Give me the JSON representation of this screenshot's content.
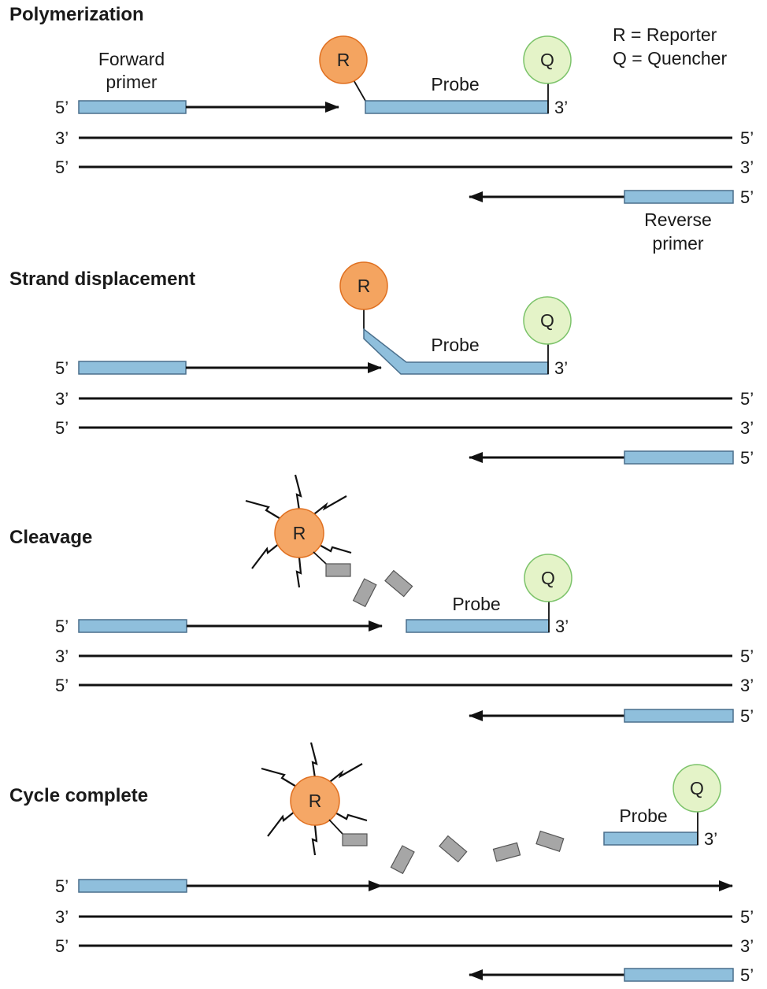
{
  "legend": {
    "reporter": "R = Reporter",
    "quencher": "Q = Quencher"
  },
  "labels": {
    "forward_primer_line1": "Forward",
    "forward_primer_line2": "primer",
    "reverse_primer_line1": "Reverse",
    "reverse_primer_line2": "primer",
    "probe": "Probe",
    "reporter": "R",
    "quencher": "Q",
    "five_prime": "5’",
    "three_prime": "3’"
  },
  "panels": [
    {
      "title": "Polymerization"
    },
    {
      "title": "Strand displacement"
    },
    {
      "title": "Cleavage"
    },
    {
      "title": "Cycle complete"
    }
  ],
  "colors": {
    "primer_fill": "#8fbfdc",
    "reporter_fill": "#f4a460",
    "quencher_fill": "#e4f3c8",
    "fragment_fill": "#a6a6a6"
  }
}
